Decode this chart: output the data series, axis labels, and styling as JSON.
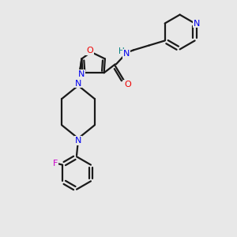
{
  "background_color": "#e8e8e8",
  "bond_color": "#1a1a1a",
  "bond_width": 1.6,
  "nitrogen_color": "#0000ee",
  "oxygen_color": "#ee0000",
  "fluorine_color": "#cc00cc",
  "h_color": "#008080",
  "figsize": [
    3.0,
    3.0
  ],
  "dpi": 100,
  "xlim": [
    -1.0,
    5.5
  ],
  "ylim": [
    -4.5,
    3.0
  ]
}
